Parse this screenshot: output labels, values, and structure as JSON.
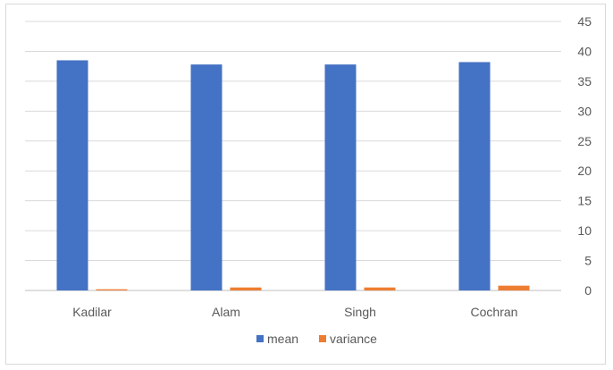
{
  "chart_data": {
    "type": "bar",
    "categories": [
      "Kadilar",
      "Alam",
      "Singh",
      "Cochran"
    ],
    "series": [
      {
        "name": "mean",
        "values": [
          38.5,
          37.8,
          37.8,
          38.2
        ],
        "color": "#4472C4"
      },
      {
        "name": "variance",
        "values": [
          0.2,
          0.5,
          0.5,
          0.8
        ],
        "color": "#ED7D31"
      }
    ],
    "ylim": [
      0,
      45
    ],
    "yticks": [
      "0",
      "5",
      "10",
      "15",
      "20",
      "25",
      "30",
      "35",
      "40",
      "45"
    ],
    "y_axis_side": "right",
    "grid": true,
    "legend": "bottom",
    "title": "",
    "xlabel": "",
    "ylabel": ""
  }
}
